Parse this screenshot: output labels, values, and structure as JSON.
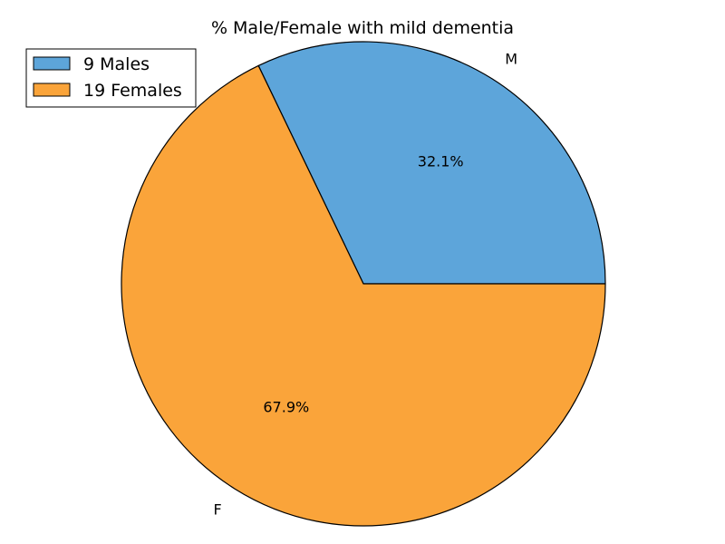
{
  "chart_data": {
    "type": "pie",
    "title": "% Male/Female with mild dementia",
    "categories": [
      "M",
      "F"
    ],
    "values": [
      9,
      19
    ],
    "percent_labels": [
      "32.1%",
      "67.9%"
    ],
    "colors": [
      "#5da5da",
      "#faa43a"
    ],
    "legend": {
      "entries": [
        "9 Males",
        "19 Females"
      ],
      "placement": "top-left"
    },
    "start_angle_deg": 0,
    "direction": "counterclockwise"
  }
}
